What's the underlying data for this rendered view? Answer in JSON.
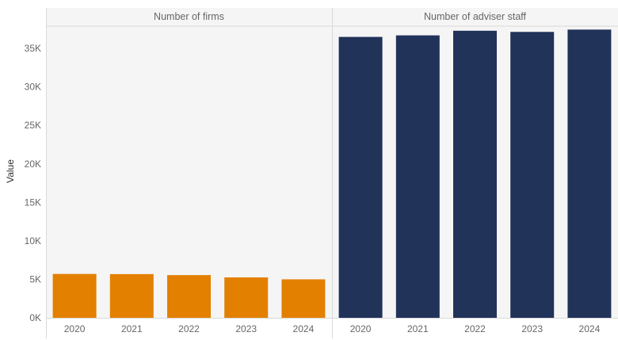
{
  "chart_data": {
    "type": "bar",
    "ylabel": "Value",
    "ylim": [
      0,
      38000
    ],
    "yticks": [
      {
        "value": 0,
        "label": "0K"
      },
      {
        "value": 5000,
        "label": "5K"
      },
      {
        "value": 10000,
        "label": "10K"
      },
      {
        "value": 15000,
        "label": "15K"
      },
      {
        "value": 20000,
        "label": "20K"
      },
      {
        "value": 25000,
        "label": "25K"
      },
      {
        "value": 30000,
        "label": "30K"
      },
      {
        "value": 35000,
        "label": "35K"
      }
    ],
    "grid": false,
    "legend": "none",
    "panels": [
      {
        "title": "Number of firms",
        "color": "#E38000",
        "categories": [
          "2020",
          "2021",
          "2022",
          "2023",
          "2024"
        ],
        "values": [
          5700,
          5680,
          5550,
          5250,
          5000
        ]
      },
      {
        "title": "Number of adviser staff",
        "color": "#213359",
        "categories": [
          "2020",
          "2021",
          "2022",
          "2023",
          "2024"
        ],
        "values": [
          36500,
          36700,
          37300,
          37150,
          37450
        ]
      }
    ]
  },
  "colors": {
    "plot_background": "#F5F5F5",
    "divider": "#D9D9D9",
    "text": "#666666"
  }
}
